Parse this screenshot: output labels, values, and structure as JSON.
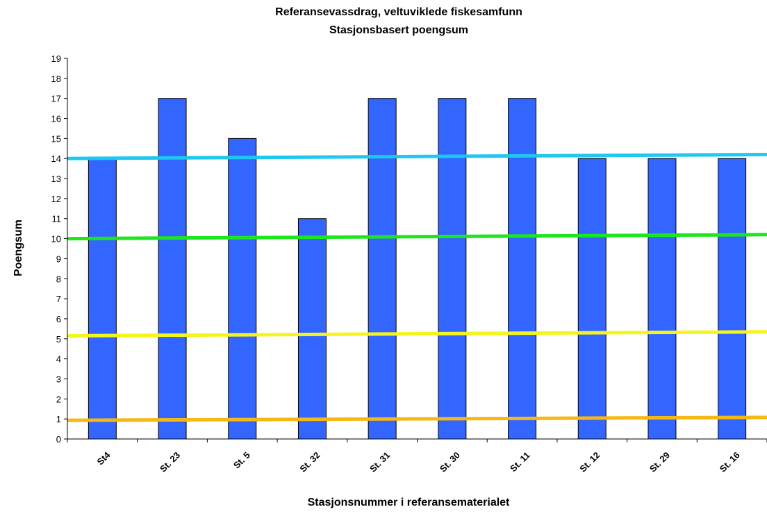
{
  "chart_data": {
    "type": "bar",
    "title": "Referansevassdrag, veltuviklede fiskesamfunn",
    "subtitle": "Stasjonsbasert poengsum",
    "xlabel": "Stasjonsnummer i referansematerialet",
    "ylabel": "Poengsum",
    "categories": [
      "St4",
      "St. 23",
      "St. 5",
      "St. 32",
      "St. 31",
      "St. 30",
      "St. 11",
      "St. 12",
      "St. 29",
      "St. 16"
    ],
    "values": [
      14,
      17,
      15,
      11,
      17,
      17,
      17,
      14,
      14,
      14
    ],
    "ylim": [
      0,
      19
    ],
    "yticks": [
      "0",
      "1",
      "2",
      "3",
      "4",
      "5",
      "6",
      "7",
      "8",
      "9",
      "10",
      "11",
      "12",
      "13",
      "14",
      "15",
      "16",
      "17",
      "18",
      "19"
    ],
    "grid": false,
    "bar_color": "#3366ff",
    "reference_lines": [
      {
        "y_start": 14.0,
        "y_end": 14.2,
        "color": "#1ec8f0"
      },
      {
        "y_start": 10.0,
        "y_end": 10.2,
        "color": "#1ee61e"
      },
      {
        "y_start": 5.15,
        "y_end": 5.35,
        "color": "#f5f51e"
      },
      {
        "y_start": 0.93,
        "y_end": 1.08,
        "color": "#f5b814"
      }
    ]
  }
}
